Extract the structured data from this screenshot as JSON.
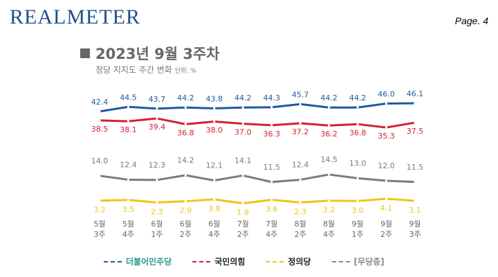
{
  "header": {
    "logo": "REALMETER",
    "page": "Page. 4"
  },
  "chart_data": {
    "type": "line",
    "title": "2023년 9월 3주차",
    "subtitle": "정당 지지도 주간 변화",
    "unit": "단위: %",
    "categories": [
      [
        "5월",
        "3주"
      ],
      [
        "5월",
        "4주"
      ],
      [
        "6월",
        "1주"
      ],
      [
        "6월",
        "2주"
      ],
      [
        "6월",
        "4주"
      ],
      [
        "7월",
        "2주"
      ],
      [
        "7월",
        "4주"
      ],
      [
        "8월",
        "2주"
      ],
      [
        "8월",
        "4주"
      ],
      [
        "9월",
        "1주"
      ],
      [
        "9월",
        "2주"
      ],
      [
        "9월",
        "3주"
      ]
    ],
    "series": [
      {
        "name": "더불어민주당",
        "color": "#1c5aa0",
        "values": [
          42.4,
          44.5,
          43.7,
          44.2,
          43.8,
          44.2,
          44.3,
          45.7,
          44.2,
          44.2,
          46.0,
          46.1
        ]
      },
      {
        "name": "국민의힘",
        "color": "#d42030",
        "values": [
          38.5,
          38.1,
          39.4,
          36.8,
          38.0,
          37.0,
          36.3,
          37.2,
          36.2,
          36.8,
          35.3,
          37.5
        ]
      },
      {
        "name": "[무당층]",
        "color": "#7a7a7a",
        "values": [
          14.0,
          12.4,
          12.3,
          14.2,
          12.1,
          14.1,
          11.5,
          12.4,
          14.5,
          13.0,
          12.0,
          11.5
        ]
      },
      {
        "name": "정의당",
        "color": "#f0c419",
        "values": [
          3.2,
          3.5,
          2.3,
          2.9,
          3.8,
          1.9,
          3.6,
          2.3,
          3.2,
          3.0,
          4.1,
          3.1
        ]
      }
    ],
    "legend_placement": "bottom",
    "grid": false
  }
}
